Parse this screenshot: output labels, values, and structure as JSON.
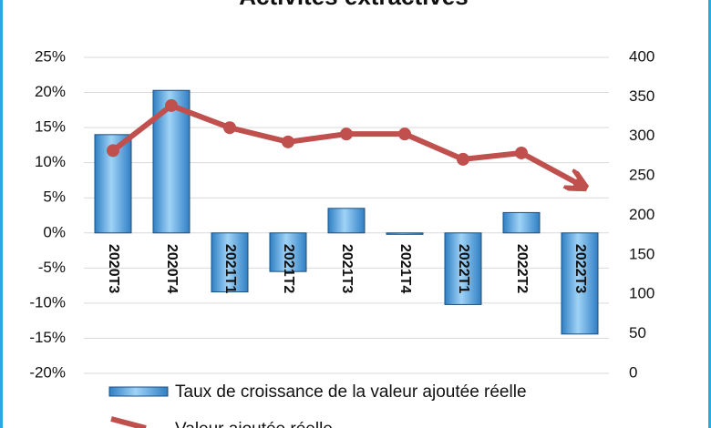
{
  "chart_data": {
    "type": "bar_line",
    "title": "Activités extractives",
    "categories": [
      "2020T3",
      "2020T4",
      "2021T1",
      "2021T2",
      "2021T3",
      "2021T4",
      "2022T1",
      "2022T2",
      "2022T3"
    ],
    "series": [
      {
        "name": "Taux de croissance de la valeur ajoutée réelle",
        "type": "bar",
        "color": "#5aaee8",
        "values": [
          14,
          20.3,
          -8.4,
          -5.5,
          3.5,
          -0.2,
          -10.2,
          2.9,
          -14.4
        ]
      },
      {
        "name": "Valeur ajoutée réelle",
        "type": "line",
        "axis": "y2",
        "color": "#c0504d",
        "values": [
          282,
          339,
          311,
          293,
          303,
          303,
          271,
          279,
          239
        ]
      }
    ],
    "ylim": [
      -20,
      25
    ],
    "yticks": [
      {
        "value": -20,
        "label": "-20%"
      },
      {
        "value": -15,
        "label": "-15%"
      },
      {
        "value": -10,
        "label": "-10%"
      },
      {
        "value": -5,
        "label": "-5%"
      },
      {
        "value": 0,
        "label": "0%"
      },
      {
        "value": 5,
        "label": "5%"
      },
      {
        "value": 10,
        "label": "10%"
      },
      {
        "value": 15,
        "label": "15%"
      },
      {
        "value": 20,
        "label": "20%"
      },
      {
        "value": 25,
        "label": "25%"
      }
    ],
    "y2lim": [
      0,
      400
    ],
    "y2ticks": [
      0,
      50,
      100,
      150,
      200,
      250,
      300,
      350,
      400
    ],
    "grid": true
  }
}
